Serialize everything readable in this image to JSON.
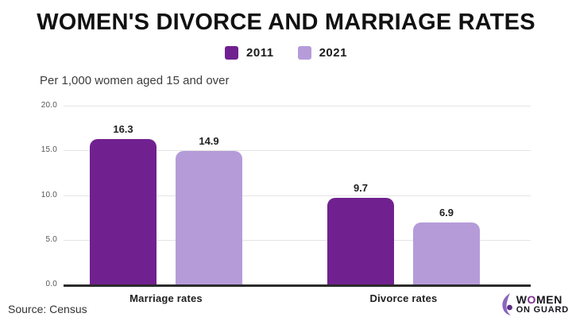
{
  "header": {
    "title": "WOMEN'S DIVORCE AND MARRIAGE RATES",
    "subtitle": "Per 1,000 women aged 15 and over"
  },
  "chart_data": {
    "type": "bar",
    "categories": [
      "Marriage rates",
      "Divorce rates"
    ],
    "series": [
      {
        "name": "2011",
        "color": "#71218F",
        "values": [
          16.3,
          9.7
        ]
      },
      {
        "name": "2021",
        "color": "#B59CD9",
        "values": [
          14.9,
          6.9
        ]
      }
    ],
    "ylim": [
      0,
      20
    ],
    "yticks": [
      20,
      15,
      10,
      5,
      0
    ],
    "ytick_format": "one-decimal",
    "grid": true,
    "legend_position": "top",
    "value_labels": true
  },
  "footer": {
    "source": "Source: Census"
  },
  "logo": {
    "line1_pre": "W",
    "line1_o": "O",
    "line1_post": "MEN",
    "line2": "ON GUARD",
    "o_color": "#7B2E8C",
    "icon_color": "#8A66BD",
    "icon_accent": "#5C2D87"
  }
}
